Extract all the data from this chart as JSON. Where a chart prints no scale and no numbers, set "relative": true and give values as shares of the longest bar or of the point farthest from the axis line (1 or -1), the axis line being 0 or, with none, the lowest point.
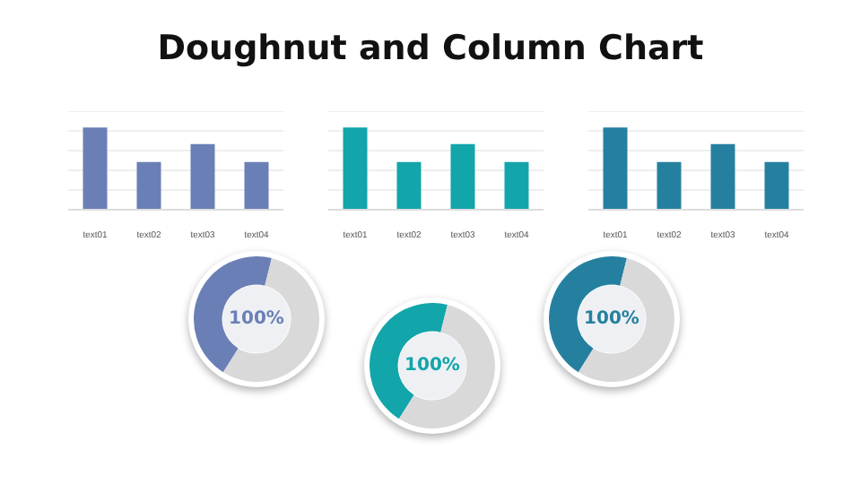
{
  "chart_data": [
    {
      "type": "bar",
      "title": "Doughnut and Column Chart",
      "categories": [
        "text01",
        "text02",
        "text03",
        "text04"
      ],
      "values": [
        1,
        0.58,
        0.8,
        0.58
      ],
      "color": "#6a7fb5",
      "relative": true,
      "grid": "y"
    },
    {
      "type": "bar",
      "categories": [
        "text01",
        "text02",
        "text03",
        "text04"
      ],
      "values": [
        1,
        0.58,
        0.8,
        0.58
      ],
      "color": "#12a5aa",
      "relative": true,
      "grid": "y"
    },
    {
      "type": "bar",
      "categories": [
        "text01",
        "text02",
        "text03",
        "text04"
      ],
      "values": [
        1,
        0.58,
        0.8,
        0.58
      ],
      "color": "#2580a0",
      "relative": true,
      "grid": "y"
    },
    {
      "type": "donut",
      "categories": [
        null,
        null
      ],
      "values": [
        45,
        55
      ],
      "colors": [
        "#6a7fb5",
        "#d9d9d9"
      ],
      "annotations": [
        "100%"
      ]
    },
    {
      "type": "donut",
      "categories": [
        null,
        null
      ],
      "values": [
        45,
        55
      ],
      "colors": [
        "#12a5aa",
        "#d9d9d9"
      ],
      "annotations": [
        "100%"
      ]
    },
    {
      "type": "donut",
      "categories": [
        null,
        null
      ],
      "values": [
        45,
        55
      ],
      "colors": [
        "#2580a0",
        "#d9d9d9"
      ],
      "annotations": [
        "100%"
      ]
    }
  ]
}
